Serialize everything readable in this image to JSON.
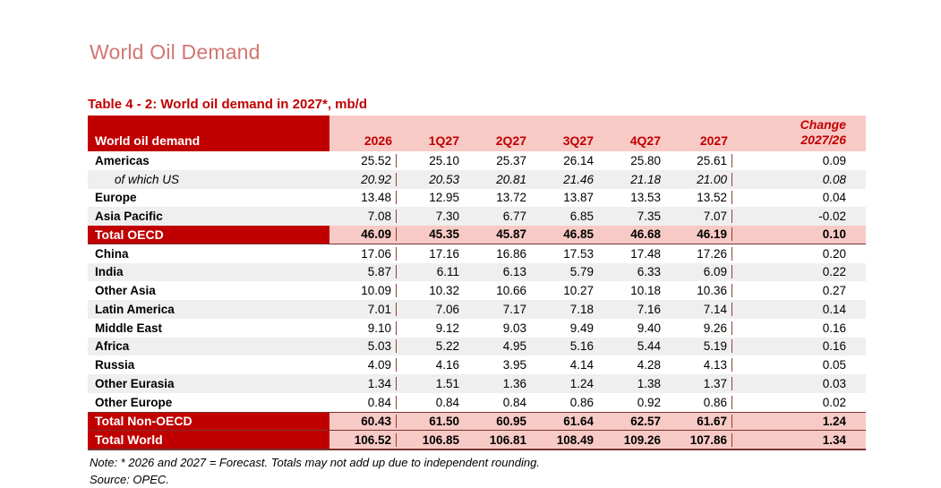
{
  "page": {
    "title": "World Oil Demand"
  },
  "table": {
    "title": "Table 4 - 2: World oil demand in 2027*, mb/d",
    "header": {
      "label": "World oil demand",
      "columns": [
        "2026",
        "1Q27",
        "2Q27",
        "3Q27",
        "4Q27",
        "2027"
      ],
      "change_line1": "Change",
      "change_line2": "2027/26"
    },
    "rows": [
      {
        "label": "Americas",
        "style": "plain",
        "values": [
          "25.52",
          "25.10",
          "25.37",
          "26.14",
          "25.80",
          "25.61"
        ],
        "change": "0.09"
      },
      {
        "label": "of which US",
        "style": "sub",
        "values": [
          "20.92",
          "20.53",
          "20.81",
          "21.46",
          "21.18",
          "21.00"
        ],
        "change": "0.08"
      },
      {
        "label": "Europe",
        "style": "plain",
        "values": [
          "13.48",
          "12.95",
          "13.72",
          "13.87",
          "13.53",
          "13.52"
        ],
        "change": "0.04"
      },
      {
        "label": "Asia Pacific",
        "style": "alt",
        "values": [
          "7.08",
          "7.30",
          "6.77",
          "6.85",
          "7.35",
          "7.07"
        ],
        "change": "-0.02"
      },
      {
        "label": "Total OECD",
        "style": "total",
        "values": [
          "46.09",
          "45.35",
          "45.87",
          "46.85",
          "46.68",
          "46.19"
        ],
        "change": "0.10",
        "border_bottom": true
      },
      {
        "label": "China",
        "style": "plain",
        "values": [
          "17.06",
          "17.16",
          "16.86",
          "17.53",
          "17.48",
          "17.26"
        ],
        "change": "0.20"
      },
      {
        "label": "India",
        "style": "alt",
        "values": [
          "5.87",
          "6.11",
          "6.13",
          "5.79",
          "6.33",
          "6.09"
        ],
        "change": "0.22"
      },
      {
        "label": "Other Asia",
        "style": "plain",
        "values": [
          "10.09",
          "10.32",
          "10.66",
          "10.27",
          "10.18",
          "10.36"
        ],
        "change": "0.27"
      },
      {
        "label": "Latin America",
        "style": "alt",
        "values": [
          "7.01",
          "7.06",
          "7.17",
          "7.18",
          "7.16",
          "7.14"
        ],
        "change": "0.14"
      },
      {
        "label": "Middle East",
        "style": "plain",
        "values": [
          "9.10",
          "9.12",
          "9.03",
          "9.49",
          "9.40",
          "9.26"
        ],
        "change": "0.16"
      },
      {
        "label": "Africa",
        "style": "alt",
        "values": [
          "5.03",
          "5.22",
          "4.95",
          "5.16",
          "5.44",
          "5.19"
        ],
        "change": "0.16"
      },
      {
        "label": "Russia",
        "style": "plain",
        "values": [
          "4.09",
          "4.16",
          "3.95",
          "4.14",
          "4.28",
          "4.13"
        ],
        "change": "0.05"
      },
      {
        "label": "Other Eurasia",
        "style": "alt",
        "values": [
          "1.34",
          "1.51",
          "1.36",
          "1.24",
          "1.38",
          "1.37"
        ],
        "change": "0.03"
      },
      {
        "label": "Other Europe",
        "style": "plain",
        "values": [
          "0.84",
          "0.84",
          "0.84",
          "0.86",
          "0.92",
          "0.86"
        ],
        "change": "0.02"
      },
      {
        "label": "Total Non-OECD",
        "style": "total",
        "values": [
          "60.43",
          "61.50",
          "60.95",
          "61.64",
          "62.57",
          "61.67"
        ],
        "change": "1.24",
        "border_top": true
      },
      {
        "label": "Total World",
        "style": "total",
        "values": [
          "106.52",
          "106.85",
          "106.81",
          "108.49",
          "109.26",
          "107.86"
        ],
        "change": "1.34",
        "border_top": true
      }
    ],
    "note": "Note: * 2026 and 2027 = Forecast. Totals may not add up due to independent rounding.",
    "source": "Source: OPEC."
  },
  "colors": {
    "accent_dark_red": "#c00000",
    "header_pink": "#f8cac6",
    "band_gray": "#efefef",
    "rule_maroon": "#7a3330",
    "page_title_coral": "#d3766f"
  }
}
